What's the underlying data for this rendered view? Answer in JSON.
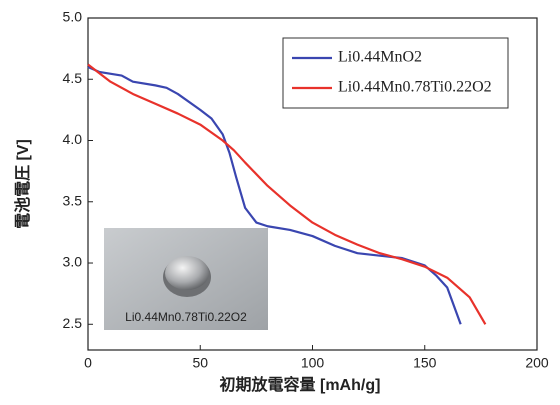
{
  "chart_data": {
    "type": "line",
    "xlabel": "初期放電容量 [mAh/g]",
    "ylabel": "電池電圧 [V]",
    "xlim": [
      0,
      200
    ],
    "ylim": [
      2.29,
      5.0
    ],
    "xticks": [
      0,
      50,
      100,
      150,
      200
    ],
    "yticks": [
      2.5,
      {
        "value": 3,
        "label": "3.0"
      },
      3.5,
      {
        "value": 4,
        "label": "4.0"
      },
      4.5,
      {
        "value": 5,
        "label": "5.0"
      }
    ],
    "legend": "upper right",
    "inset_label": "Li0.44Mn0.78Ti0.22O2",
    "series": [
      {
        "name": "Li0.44MnO2",
        "color": "#3a46b0",
        "x": [
          0,
          5,
          15,
          20,
          30,
          35,
          40,
          50,
          55,
          60,
          63,
          66,
          70,
          75,
          80,
          90,
          100,
          110,
          120,
          130,
          140,
          150,
          155,
          160,
          163,
          166
        ],
        "values": [
          4.6,
          4.56,
          4.53,
          4.48,
          4.45,
          4.43,
          4.38,
          4.25,
          4.18,
          4.05,
          3.9,
          3.7,
          3.45,
          3.33,
          3.3,
          3.27,
          3.22,
          3.14,
          3.08,
          3.06,
          3.04,
          2.98,
          2.9,
          2.8,
          2.65,
          2.5
        ]
      },
      {
        "name": "Li0.44Mn0.78Ti0.22O2",
        "color": "#e8322b",
        "x": [
          0,
          10,
          20,
          30,
          40,
          50,
          60,
          65,
          70,
          80,
          90,
          100,
          110,
          120,
          130,
          140,
          150,
          160,
          170,
          177
        ],
        "values": [
          4.62,
          4.48,
          4.38,
          4.3,
          4.22,
          4.13,
          4.0,
          3.92,
          3.82,
          3.63,
          3.47,
          3.33,
          3.23,
          3.15,
          3.08,
          3.03,
          2.97,
          2.88,
          2.72,
          2.5
        ]
      }
    ]
  }
}
